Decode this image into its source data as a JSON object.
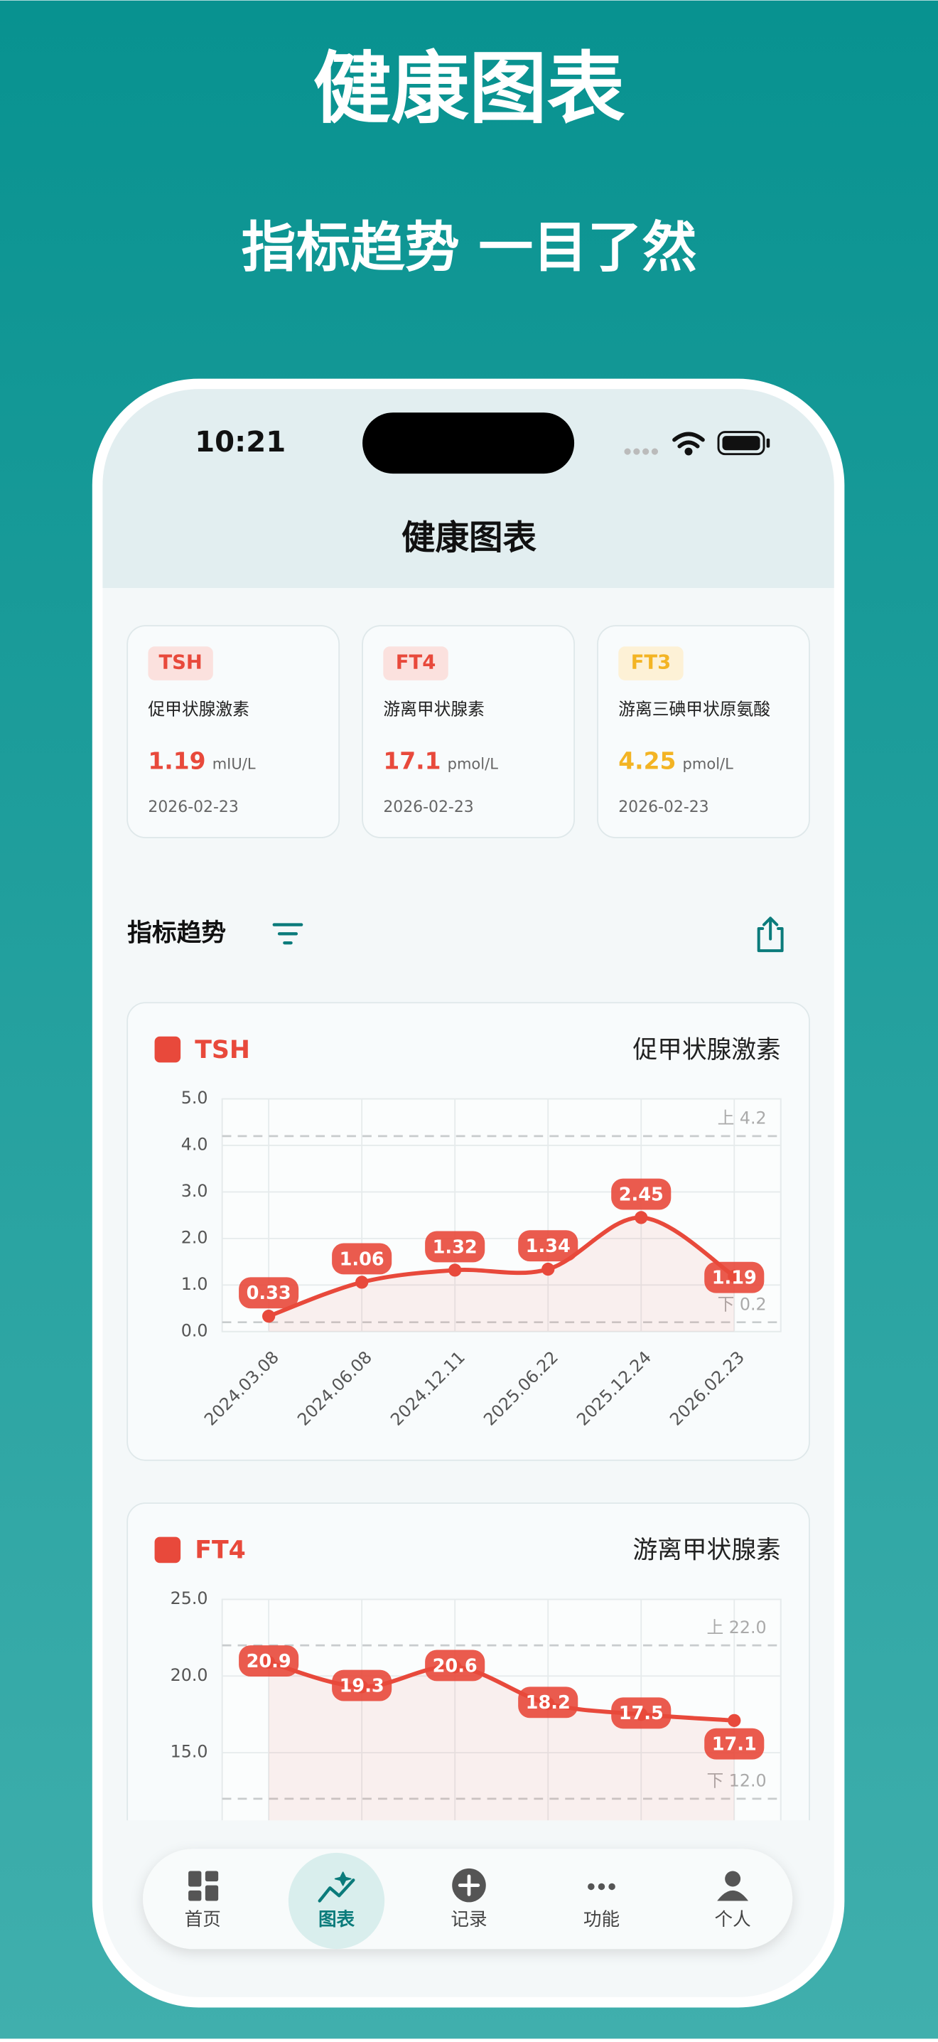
{
  "header": {
    "title": "健康图表",
    "subtitle": "指标趋势 一目了然"
  },
  "status_bar": {
    "time": "10:21"
  },
  "nav_title": "健康图表",
  "cards": [
    {
      "tag": "TSH",
      "name": "促甲状腺激素",
      "value": 1.19,
      "unit": "mIU/L",
      "date": "2026-02-23",
      "color": "#e8493b",
      "tag_bg": "#fbe1de"
    },
    {
      "tag": "FT4",
      "name": "游离甲状腺素",
      "value": 17.1,
      "unit": "pmol/L",
      "date": "2026-02-23",
      "color": "#e8493b",
      "tag_bg": "#fbe1de"
    },
    {
      "tag": "FT3",
      "name": "游离三碘甲状原氨酸",
      "value": 4.25,
      "unit": "pmol/L",
      "date": "2026-02-23",
      "color": "#f3b424",
      "tag_bg": "#fdf1d6"
    }
  ],
  "section": {
    "title": "指标趋势"
  },
  "charts": [
    {
      "type": "line",
      "tag": "TSH",
      "name": "促甲状腺激素",
      "color": "#e8493b",
      "categories": [
        "2024.03.08",
        "2024.06.08",
        "2024.12.11",
        "2025.06.22",
        "2025.12.24",
        "2026.02.23"
      ],
      "values": [
        0.33,
        1.06,
        1.32,
        1.34,
        2.45,
        1.19
      ],
      "ylim": [
        0,
        5
      ],
      "yticks": [
        {
          "value": 0,
          "label": "0.0"
        },
        {
          "value": 1,
          "label": "1.0"
        },
        {
          "value": 2,
          "label": "2.0"
        },
        {
          "value": 3,
          "label": "3.0"
        },
        {
          "value": 4,
          "label": "4.0"
        },
        {
          "value": 5,
          "label": "5.0"
        }
      ],
      "reference_lines": [
        {
          "value": 4.2,
          "label": "上 4.2"
        },
        {
          "value": 0.2,
          "label": "下 0.2"
        }
      ],
      "grid": true
    },
    {
      "type": "line",
      "tag": "FT4",
      "name": "游离甲状腺素",
      "color": "#e8493b",
      "values": [
        20.9,
        19.3,
        20.6,
        18.2,
        17.5,
        17.1
      ],
      "ylim": [
        10,
        25
      ],
      "yticks": [
        {
          "value": 15,
          "label": "15.0"
        },
        {
          "value": 20,
          "label": "20.0"
        },
        {
          "value": 25,
          "label": "25.0"
        }
      ],
      "reference_lines": [
        {
          "value": 22,
          "label": "上 22.0"
        },
        {
          "value": 12,
          "label": "下 12.0"
        }
      ],
      "grid": true
    }
  ],
  "tabs": [
    {
      "label": "首页"
    },
    {
      "label": "图表",
      "active": true
    },
    {
      "label": "记录"
    },
    {
      "label": "功能"
    },
    {
      "label": "个人"
    }
  ]
}
